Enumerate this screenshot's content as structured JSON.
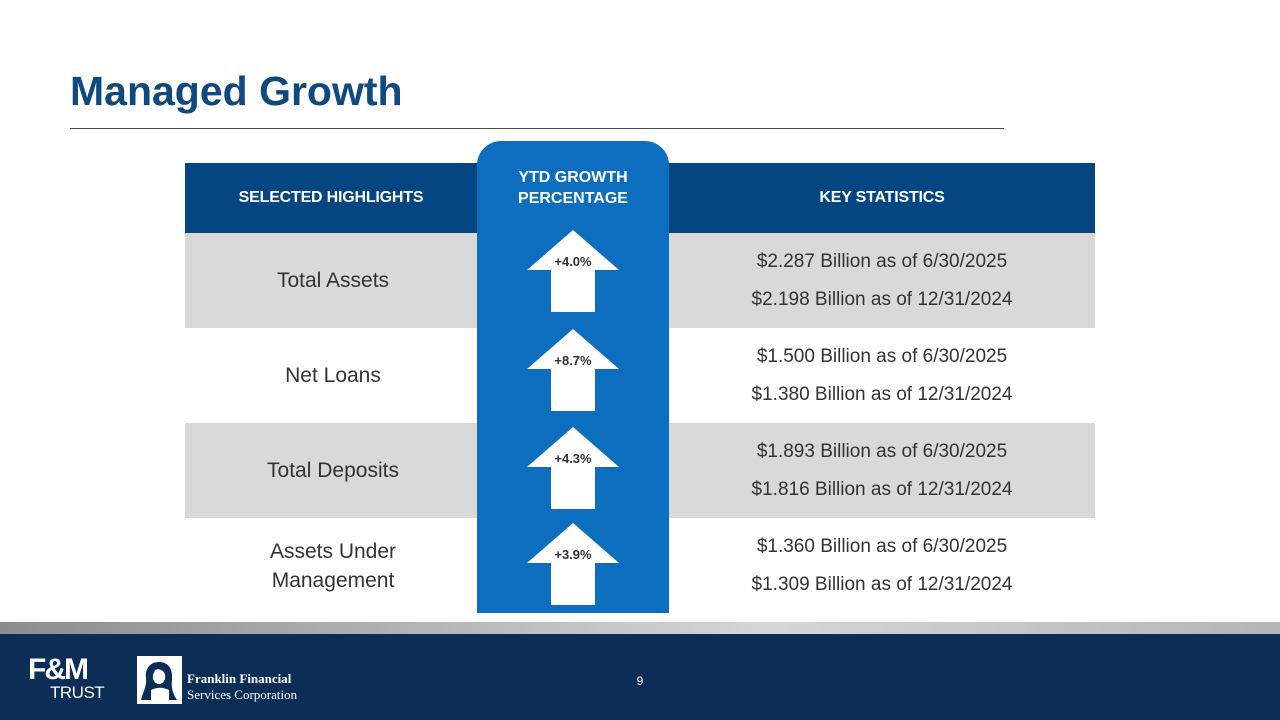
{
  "slide": {
    "title": "Managed Growth",
    "page_number": "9"
  },
  "table": {
    "headers": {
      "highlights": "SELECTED HIGHLIGHTS",
      "growth": "YTD GROWTH PERCENTAGE",
      "growth_line1": "YTD GROWTH",
      "growth_line2": "PERCENTAGE",
      "statistics": "KEY STATISTICS"
    },
    "rows": [
      {
        "label": "Total Assets",
        "growth": "+4.0%",
        "stat_current": "$2.287 Billion as of 6/30/2025",
        "stat_prior": "$2.198 Billion as of 12/31/2024"
      },
      {
        "label": "Net Loans",
        "growth": "+8.7%",
        "stat_current": "$1.500 Billion as of 6/30/2025",
        "stat_prior": "$1.380 Billion as of 12/31/2024"
      },
      {
        "label": "Total Deposits",
        "growth": "+4.3%",
        "stat_current": "$1.893 Billion as of 6/30/2025",
        "stat_prior": "$1.816 Billion as of 12/31/2024"
      },
      {
        "label": "Assets Under Management",
        "label_line1": "Assets Under",
        "label_line2": "Management",
        "growth": "+3.9%",
        "stat_current": "$1.360 Billion as of 6/30/2025",
        "stat_prior": "$1.309 Billion as of 12/31/2024"
      }
    ]
  },
  "footer": {
    "fm_logo_mark": "F&M",
    "fm_logo_word": "TRUST",
    "franklin_line1": "Franklin Financial",
    "franklin_line2": "Services Corporation"
  },
  "colors": {
    "title": "#0e4a80",
    "header_band": "#044681",
    "growth_column": "#0d6dbf",
    "row_shade": "#d9d9d9",
    "footer_band": "#0b2d56"
  },
  "icons": [
    "up-arrow-icon"
  ]
}
